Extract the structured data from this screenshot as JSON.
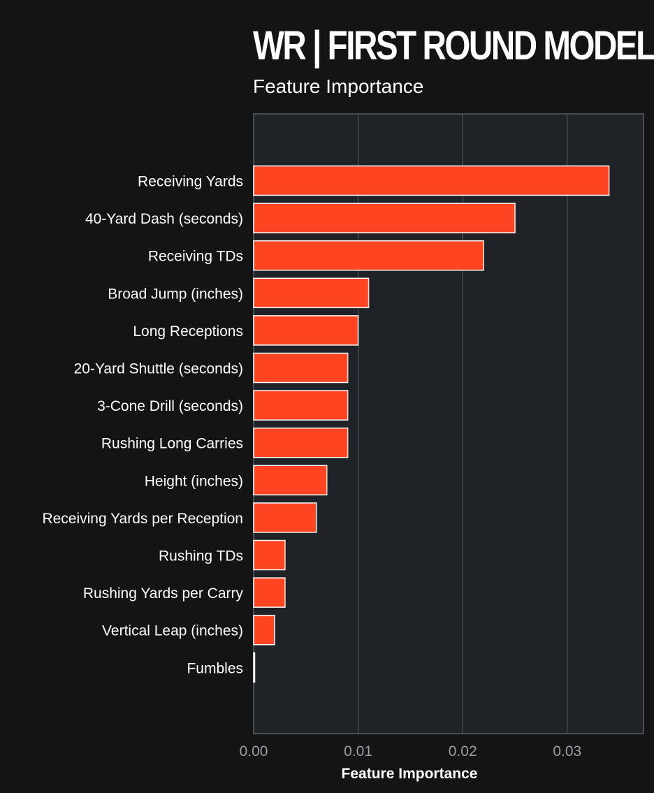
{
  "chart_data": {
    "type": "bar",
    "orientation": "horizontal",
    "title": "WR | FIRST ROUND MODEL",
    "subtitle": "Feature Importance",
    "xlabel": "Feature Importance",
    "ylabel": "",
    "xlim": [
      0,
      0.0373
    ],
    "xticks": [
      "0.00",
      "0.01",
      "0.02",
      "0.03"
    ],
    "xtick_values": [
      0,
      0.01,
      0.02,
      0.03
    ],
    "grid": "vertical",
    "categories": [
      "Receiving Yards",
      "40-Yard Dash (seconds)",
      "Receiving TDs",
      "Broad Jump (inches)",
      "Long Receptions",
      "20-Yard Shuttle (seconds)",
      "3-Cone Drill (seconds)",
      "Rushing Long Carries",
      "Height (inches)",
      "Receiving Yards per Reception",
      "Rushing TDs",
      "Rushing Yards per Carry",
      "Vertical Leap (inches)",
      "Fumbles"
    ],
    "values": [
      0.034,
      0.025,
      0.022,
      0.011,
      0.01,
      0.009,
      0.009,
      0.009,
      0.007,
      0.006,
      0.003,
      0.003,
      0.002,
      0.0001
    ],
    "colors": {
      "bar": "#ff4422",
      "bar_edge": "#ffffff",
      "plot_bg": "#1f2226",
      "page_bg": "#141414",
      "grid": "#5c6066",
      "tick_text": "#9a9ea4",
      "label_text": "#ffffff"
    }
  }
}
